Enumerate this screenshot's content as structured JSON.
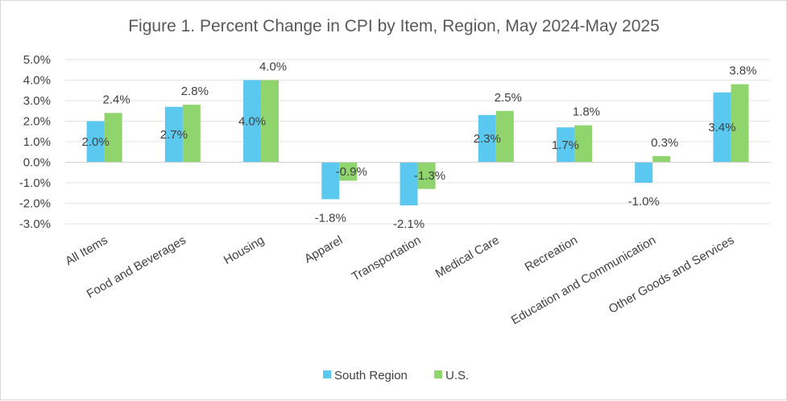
{
  "chart_data": {
    "type": "bar",
    "title": "Figure 1. Percent Change in CPI by Item, Region, May 2024-May 2025",
    "xlabel": "",
    "ylabel": "",
    "categories": [
      "All Items",
      "Food and Beverages",
      "Housing",
      "Apparel",
      "Transportation",
      "Medical Care",
      "Recreation",
      "Education and Communication",
      "Other Goods and Services"
    ],
    "series": [
      {
        "name": "South Region",
        "color": "#5bc8f0",
        "values": [
          2.0,
          2.7,
          4.0,
          -1.8,
          -2.1,
          2.3,
          1.7,
          -1.0,
          3.4
        ],
        "labels": [
          "2.0%",
          "2.7%",
          "4.0%",
          "-1.8%",
          "-2.1%",
          "2.3%",
          "1.7%",
          "-1.0%",
          "3.4%"
        ]
      },
      {
        "name": "U.S.",
        "color": "#8fd46c",
        "values": [
          2.4,
          2.8,
          4.0,
          -0.9,
          -1.3,
          2.5,
          1.8,
          0.3,
          3.8
        ],
        "labels": [
          "2.4%",
          "2.8%",
          "4.0%",
          "-0.9%",
          "-1.3%",
          "2.5%",
          "1.8%",
          "0.3%",
          "3.8%"
        ]
      }
    ],
    "ylim": [
      -3.0,
      5.0
    ],
    "yticks": [
      5.0,
      4.0,
      3.0,
      2.0,
      1.0,
      0.0,
      -1.0,
      -2.0,
      -3.0
    ],
    "ytick_labels": [
      "5.0%",
      "4.0%",
      "3.0%",
      "2.0%",
      "1.0%",
      "0.0%",
      "-1.0%",
      "-2.0%",
      "-3.0%"
    ],
    "grid": true,
    "legend_position": "bottom"
  }
}
